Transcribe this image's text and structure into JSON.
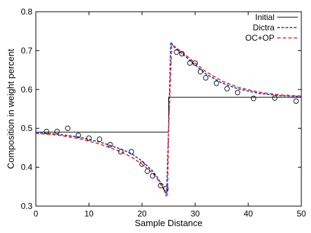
{
  "chart_data": {
    "type": "line",
    "xlabel": "Sample Distance",
    "ylabel": "Composition in weight percent",
    "xlim": [
      0,
      50
    ],
    "ylim": [
      0.3,
      0.8
    ],
    "x_ticks": [
      0,
      10,
      20,
      30,
      40,
      50
    ],
    "y_ticks": [
      0.3,
      0.4,
      0.5,
      0.6,
      0.7,
      0.8
    ],
    "x_tick_labels": [
      "0",
      "10",
      "20",
      "30",
      "40",
      "50"
    ],
    "y_tick_labels": [
      "0.3",
      "0.4",
      "0.5",
      "0.6",
      "0.7",
      "0.8"
    ],
    "grid": false,
    "legend_position": "top-right",
    "colors": {
      "initial": "#000000",
      "dictra": "#1f3fbf",
      "ocop": "#e0302a",
      "points": "#000000"
    },
    "series": [
      {
        "name": "Initial",
        "style": "solid",
        "x": [
          0,
          25,
          25,
          50
        ],
        "y": [
          0.49,
          0.49,
          0.58,
          0.58
        ]
      },
      {
        "name": "Dictra",
        "style": "dashed",
        "x": [
          0,
          4,
          8,
          12,
          16,
          18,
          20,
          22,
          23,
          24,
          24.6,
          25,
          25.4,
          26,
          28,
          30,
          32,
          35,
          38,
          42,
          46,
          50
        ],
        "y": [
          0.489,
          0.485,
          0.478,
          0.465,
          0.447,
          0.435,
          0.416,
          0.39,
          0.372,
          0.348,
          0.325,
          0.5,
          0.722,
          0.71,
          0.687,
          0.663,
          0.64,
          0.617,
          0.602,
          0.59,
          0.584,
          0.582
        ]
      },
      {
        "name": "OC+OP",
        "style": "dashed",
        "x": [
          0,
          4,
          8,
          12,
          16,
          18,
          20,
          22,
          23,
          24,
          24.8,
          25,
          25.6,
          26,
          28,
          30,
          32,
          35,
          38,
          42,
          46,
          50
        ],
        "y": [
          0.487,
          0.483,
          0.474,
          0.46,
          0.44,
          0.426,
          0.408,
          0.385,
          0.367,
          0.345,
          0.33,
          0.5,
          0.715,
          0.712,
          0.691,
          0.668,
          0.646,
          0.622,
          0.606,
          0.593,
          0.586,
          0.583
        ]
      }
    ],
    "points": {
      "x": [
        2,
        4,
        6,
        8,
        10,
        12,
        14,
        16,
        18,
        20,
        21,
        22,
        23.5,
        24.5,
        26.5,
        27.5,
        29,
        30,
        31,
        32,
        34,
        36,
        38,
        41,
        45,
        49
      ],
      "y": [
        0.492,
        0.492,
        0.5,
        0.482,
        0.475,
        0.472,
        0.458,
        0.44,
        0.44,
        0.408,
        0.39,
        0.378,
        0.353,
        0.345,
        0.696,
        0.692,
        0.668,
        0.668,
        0.646,
        0.63,
        0.616,
        0.602,
        0.592,
        0.577,
        0.578,
        0.57
      ]
    }
  }
}
